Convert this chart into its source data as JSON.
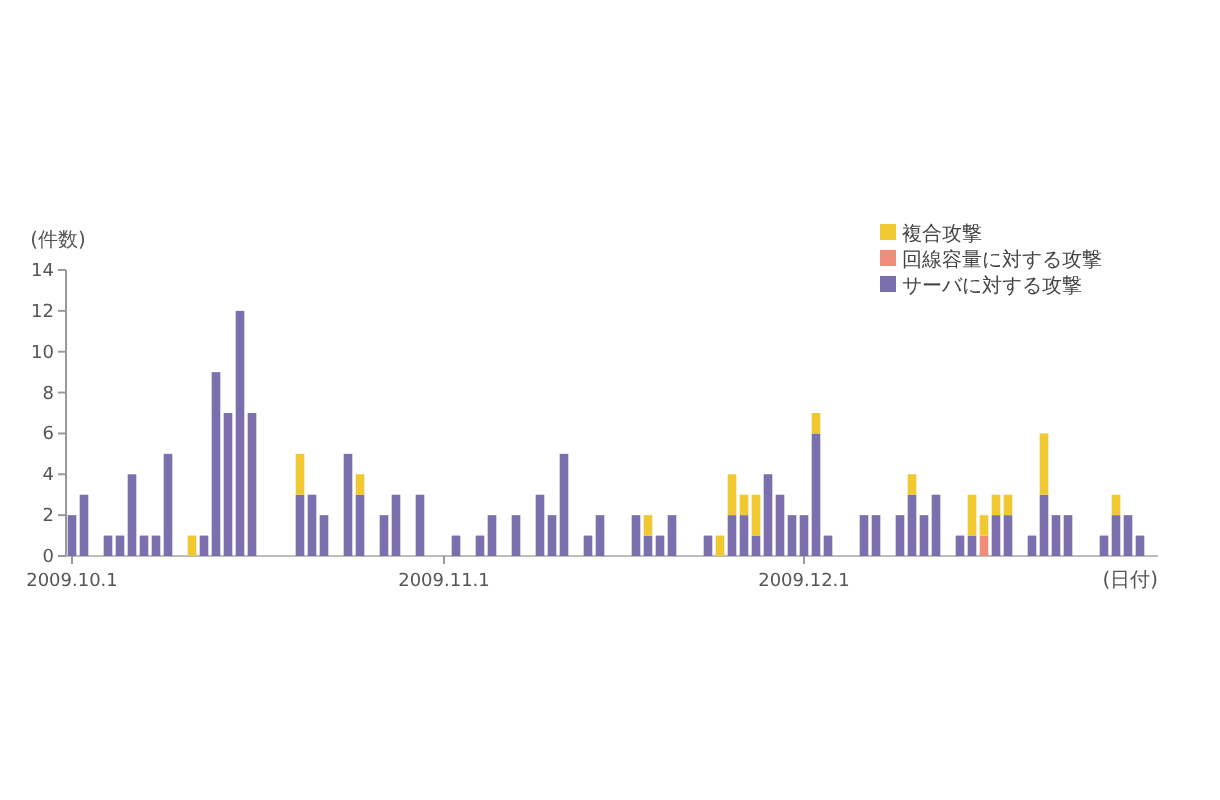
{
  "chart_data": {
    "type": "bar",
    "stacked": true,
    "ylabel": "(件数)",
    "xlabel": "(日付)",
    "categories": [
      "2009.10.1",
      null,
      null,
      null,
      null,
      null,
      null,
      null,
      null,
      null,
      null,
      null,
      null,
      null,
      null,
      null,
      null,
      null,
      null,
      null,
      null,
      null,
      null,
      null,
      null,
      null,
      null,
      null,
      null,
      null,
      null,
      "2009.11.1",
      null,
      null,
      null,
      null,
      null,
      null,
      null,
      null,
      null,
      null,
      null,
      null,
      null,
      null,
      null,
      null,
      null,
      null,
      null,
      null,
      null,
      null,
      null,
      null,
      null,
      null,
      null,
      null,
      null,
      "2009.12.1",
      null,
      null,
      null,
      null,
      null,
      null,
      null,
      null,
      null,
      null,
      null,
      null,
      null,
      null,
      null,
      null,
      null,
      null,
      null,
      null,
      null,
      null,
      null,
      null,
      null,
      null,
      null,
      null,
      null
    ],
    "ylim": [
      0,
      14
    ],
    "yticks": [
      0,
      2,
      4,
      6,
      8,
      10,
      12,
      14
    ],
    "legend": "top right",
    "series": [
      {
        "name": "サーバに対する攻撃",
        "color": "#7b70ad",
        "values": [
          2,
          3,
          0,
          1,
          1,
          4,
          1,
          1,
          5,
          0,
          0,
          1,
          9,
          7,
          12,
          7,
          0,
          0,
          0,
          3,
          3,
          2,
          0,
          5,
          3,
          0,
          2,
          3,
          0,
          3,
          0,
          0,
          1,
          0,
          1,
          2,
          0,
          2,
          0,
          3,
          2,
          5,
          0,
          1,
          2,
          0,
          0,
          2,
          1,
          1,
          2,
          0,
          0,
          1,
          0,
          2,
          2,
          1,
          4,
          3,
          2,
          2,
          6,
          1,
          0,
          0,
          2,
          2,
          0,
          2,
          3,
          2,
          3,
          0,
          1,
          1,
          0,
          2,
          2,
          0,
          1,
          3,
          2,
          2,
          0,
          0,
          1,
          2,
          2,
          1,
          0
        ]
      },
      {
        "name": "回線容量に対する攻撃",
        "color": "#f08c7a",
        "values": [
          0,
          0,
          0,
          0,
          0,
          0,
          0,
          0,
          0,
          0,
          0,
          0,
          0,
          0,
          0,
          0,
          0,
          0,
          0,
          0,
          0,
          0,
          0,
          0,
          0,
          0,
          0,
          0,
          0,
          0,
          0,
          0,
          0,
          0,
          0,
          0,
          0,
          0,
          0,
          0,
          0,
          0,
          0,
          0,
          0,
          0,
          0,
          0,
          0,
          0,
          0,
          0,
          0,
          0,
          0,
          0,
          0,
          0,
          0,
          0,
          0,
          0,
          0,
          0,
          0,
          0,
          0,
          0,
          0,
          0,
          0,
          0,
          0,
          0,
          0,
          0,
          1,
          0,
          0,
          0,
          0,
          0,
          0,
          0,
          0,
          0,
          0,
          0,
          0,
          0,
          0
        ]
      },
      {
        "name": "複合攻撃",
        "color": "#f0c832",
        "values": [
          0,
          0,
          0,
          0,
          0,
          0,
          0,
          0,
          0,
          0,
          1,
          0,
          0,
          0,
          0,
          0,
          0,
          0,
          0,
          2,
          0,
          0,
          0,
          0,
          1,
          0,
          0,
          0,
          0,
          0,
          0,
          0,
          0,
          0,
          0,
          0,
          0,
          0,
          0,
          0,
          0,
          0,
          0,
          0,
          0,
          0,
          0,
          0,
          1,
          0,
          0,
          0,
          0,
          0,
          1,
          2,
          1,
          2,
          0,
          0,
          0,
          0,
          1,
          0,
          0,
          0,
          0,
          0,
          0,
          0,
          1,
          0,
          0,
          0,
          0,
          2,
          1,
          1,
          1,
          0,
          0,
          3,
          0,
          0,
          0,
          0,
          0,
          1,
          0,
          0,
          0
        ]
      }
    ]
  }
}
